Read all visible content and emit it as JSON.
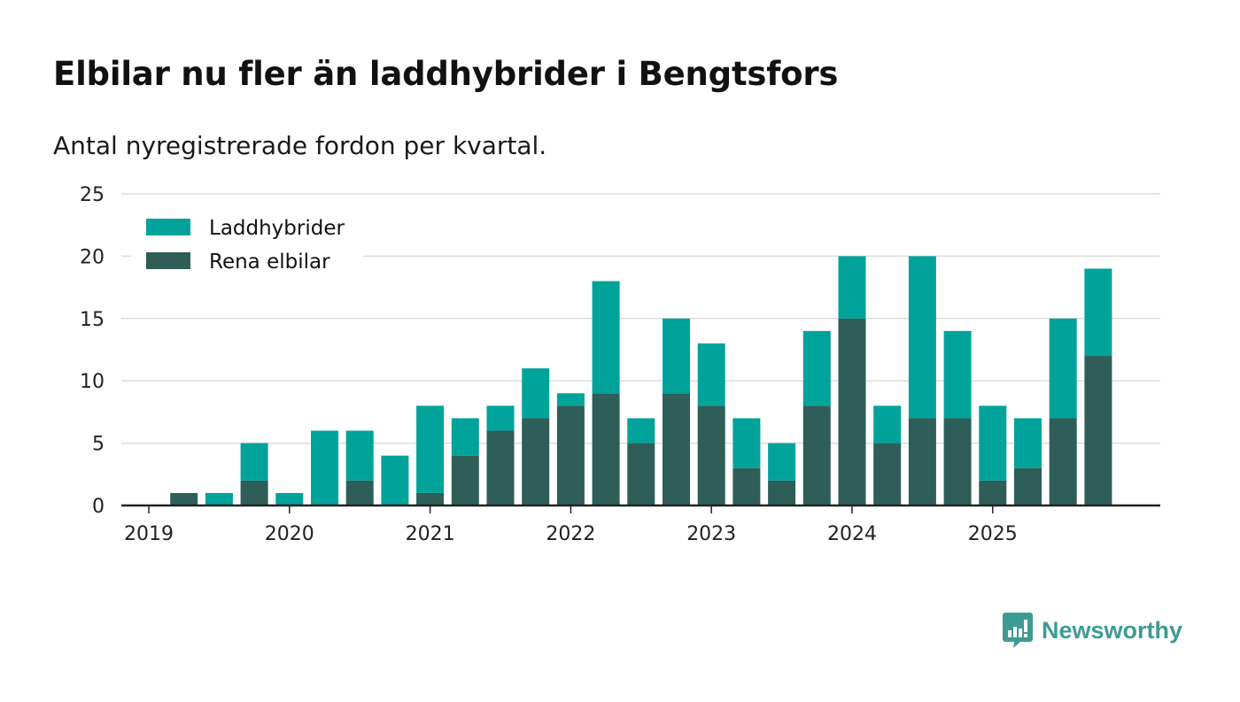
{
  "title": "Elbilar nu fler än laddhybrider i Bengtsfors",
  "subtitle": "Antal nyregistrerade fordon per kvartal.",
  "brand": "Newsworthy",
  "colors": {
    "laddhybrider": "#00a39a",
    "elbilar": "#2f5d57",
    "grid": "#dcdcdc",
    "axis": "#222222",
    "brand": "#3c9c93"
  },
  "chart_data": {
    "type": "bar",
    "stacked": true,
    "title": "Elbilar nu fler än laddhybrider i Bengtsfors",
    "subtitle": "Antal nyregistrerade fordon per kvartal.",
    "xlabel": "",
    "ylabel": "",
    "ylim": [
      0,
      25
    ],
    "yticks": [
      0,
      5,
      10,
      15,
      20,
      25
    ],
    "xtick_labels": [
      "2019",
      "2020",
      "2021",
      "2022",
      "2023",
      "2024",
      "2025"
    ],
    "categories": [
      "2019 Q1",
      "2019 Q2",
      "2019 Q3",
      "2019 Q4",
      "2020 Q1",
      "2020 Q2",
      "2020 Q3",
      "2020 Q4",
      "2021 Q1",
      "2021 Q2",
      "2021 Q3",
      "2021 Q4",
      "2022 Q1",
      "2022 Q2",
      "2022 Q3",
      "2022 Q4",
      "2023 Q1",
      "2023 Q2",
      "2023 Q3",
      "2023 Q4",
      "2024 Q1",
      "2024 Q2",
      "2024 Q3",
      "2024 Q4",
      "2025 Q1",
      "2025 Q2",
      "2025 Q3",
      "2025 Q4"
    ],
    "legend_position": "top-left",
    "grid": true,
    "series": [
      {
        "name": "Rena elbilar",
        "values": [
          0,
          1,
          0,
          2,
          0,
          0,
          2,
          0,
          1,
          4,
          6,
          7,
          8,
          9,
          5,
          9,
          8,
          3,
          2,
          8,
          15,
          5,
          7,
          7,
          2,
          3,
          7,
          12
        ]
      },
      {
        "name": "Laddhybrider",
        "values": [
          0,
          0,
          1,
          3,
          1,
          6,
          4,
          4,
          7,
          3,
          2,
          4,
          1,
          9,
          2,
          6,
          5,
          4,
          3,
          6,
          5,
          3,
          13,
          7,
          6,
          4,
          8,
          7
        ]
      }
    ]
  }
}
